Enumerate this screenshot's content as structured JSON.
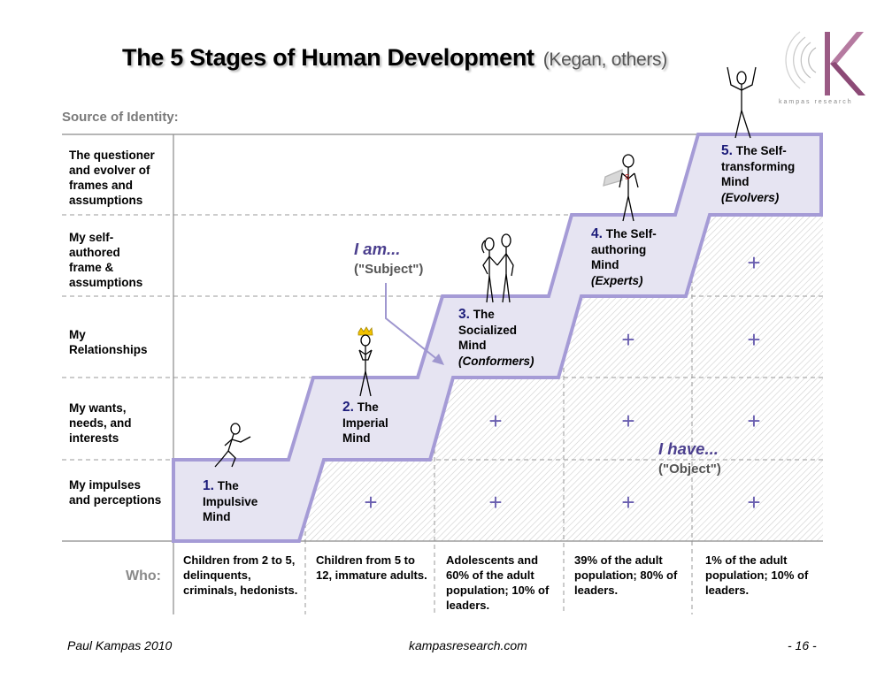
{
  "title": {
    "main": "The 5 Stages of Human Development",
    "sub": "(Kegan, others)"
  },
  "source_label": "Source of Identity:",
  "rows": [
    {
      "label": "The questioner and evolver of frames and assumptions"
    },
    {
      "label": "My self-authored frame & assumptions"
    },
    {
      "label": "My Relationships"
    },
    {
      "label": "My wants, needs, and interests"
    },
    {
      "label": "My impulses and perceptions"
    }
  ],
  "stages": [
    {
      "num": "1.",
      "name": "The Impulsive Mind",
      "sub": ""
    },
    {
      "num": "2.",
      "name": "The Imperial Mind",
      "sub": ""
    },
    {
      "num": "3.",
      "name": "The Socialized Mind",
      "sub": "(Conformers)"
    },
    {
      "num": "4.",
      "name": "The Self-authoring Mind",
      "sub": "(Experts)"
    },
    {
      "num": "5.",
      "name": "The Self-transforming Mind",
      "sub": "(Evolvers)"
    }
  ],
  "subject": {
    "label": "I am...",
    "sub": "(\"Subject\")"
  },
  "object": {
    "label": "I have...",
    "sub": "(\"Object\")"
  },
  "plus_symbol": "+",
  "who_label": "Who:",
  "who": [
    "Children from 2 to 5, delinquents, criminals, hedonists.",
    "Children from 5 to 12, immature adults.",
    "Adolescents and 60% of the adult population;  10% of leaders.",
    "39% of the adult population;  80% of leaders.",
    "1% of the adult population; 10% of leaders."
  ],
  "footer": {
    "author": "Paul Kampas  2010",
    "site": "kampasresearch.com",
    "page": "- 16 -"
  },
  "logo": {
    "text": "kampas research"
  },
  "colors": {
    "stair_fill": "#e6e4f2",
    "stair_stroke": "#a59bd6",
    "accent": "#4b3f8e",
    "number": "#1c1c7a"
  }
}
